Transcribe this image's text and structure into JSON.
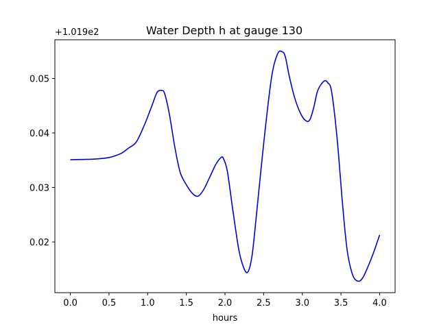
{
  "chart_data": {
    "type": "line",
    "title": "Water Depth h at gauge 130",
    "xlabel": "hours",
    "ylabel": "",
    "offset_text": "+1.019e2",
    "xlim": [
      -0.2,
      4.2
    ],
    "ylim": [
      0.0107,
      0.0571
    ],
    "x_ticks": [
      0.0,
      0.5,
      1.0,
      1.5,
      2.0,
      2.5,
      3.0,
      3.5,
      4.0
    ],
    "x_tick_labels": [
      "0.0",
      "0.5",
      "1.0",
      "1.5",
      "2.0",
      "2.5",
      "3.0",
      "3.5",
      "4.0"
    ],
    "y_ticks": [
      0.02,
      0.03,
      0.04,
      0.05
    ],
    "y_tick_labels": [
      "0.02",
      "0.03",
      "0.04",
      "0.05"
    ],
    "grid": false,
    "series": [
      {
        "color": "#0000dd",
        "x": [
          0.0,
          0.3,
          0.5,
          0.65,
          0.75,
          0.85,
          0.95,
          1.05,
          1.12,
          1.18,
          1.22,
          1.28,
          1.35,
          1.42,
          1.5,
          1.58,
          1.65,
          1.72,
          1.8,
          1.88,
          1.95,
          1.98,
          2.03,
          2.1,
          2.18,
          2.25,
          2.3,
          2.35,
          2.4,
          2.5,
          2.6,
          2.68,
          2.74,
          2.78,
          2.83,
          2.9,
          2.98,
          3.05,
          3.1,
          3.15,
          3.2,
          3.28,
          3.33,
          3.38,
          3.45,
          3.52,
          3.58,
          3.65,
          3.72,
          3.78,
          3.85,
          3.92,
          4.0
        ],
        "y": [
          0.0351,
          0.0352,
          0.0355,
          0.0362,
          0.0372,
          0.0383,
          0.0412,
          0.0448,
          0.0474,
          0.0478,
          0.0472,
          0.0435,
          0.0375,
          0.0328,
          0.0305,
          0.0289,
          0.0284,
          0.0295,
          0.0318,
          0.0342,
          0.0355,
          0.0353,
          0.033,
          0.026,
          0.0185,
          0.015,
          0.0146,
          0.0175,
          0.024,
          0.038,
          0.05,
          0.0545,
          0.0549,
          0.054,
          0.0505,
          0.0465,
          0.0435,
          0.0422,
          0.0425,
          0.0448,
          0.0478,
          0.0495,
          0.0492,
          0.0475,
          0.039,
          0.027,
          0.0185,
          0.014,
          0.0128,
          0.0134,
          0.0155,
          0.018,
          0.0213
        ]
      }
    ]
  }
}
